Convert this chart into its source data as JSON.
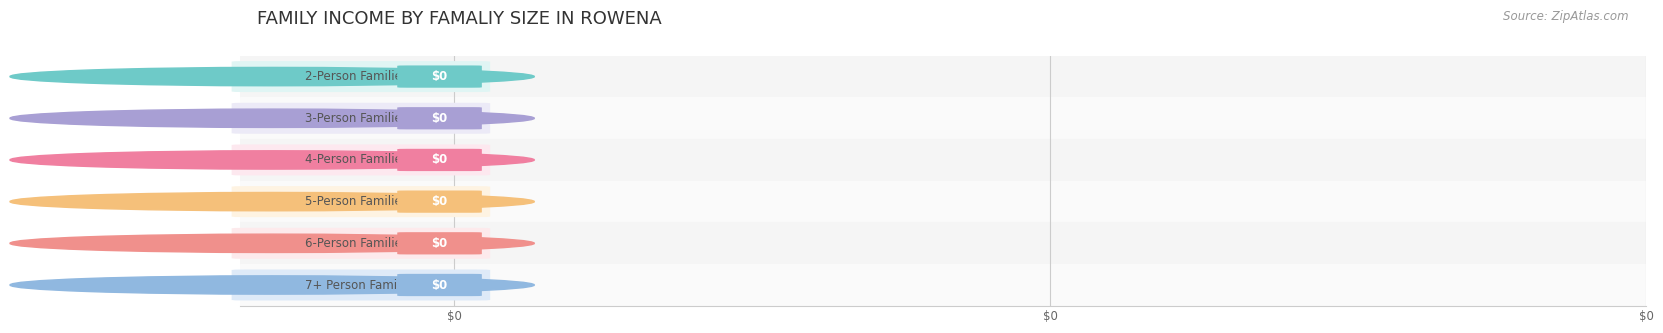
{
  "title": "FAMILY INCOME BY FAMALIY SIZE IN ROWENA",
  "source": "Source: ZipAtlas.com",
  "categories": [
    "2-Person Families",
    "3-Person Families",
    "4-Person Families",
    "5-Person Families",
    "6-Person Families",
    "7+ Person Families"
  ],
  "values": [
    0,
    0,
    0,
    0,
    0,
    0
  ],
  "bar_colors": [
    "#6ecac8",
    "#a89fd4",
    "#f07fa0",
    "#f5c07a",
    "#f0908c",
    "#90b8e0"
  ],
  "bar_bg_colors": [
    "#e0f5f4",
    "#eceaf7",
    "#fde8ef",
    "#fef3e2",
    "#fdeaec",
    "#deeaf8"
  ],
  "row_bg_colors": [
    "#f5f5f5",
    "#fafafa",
    "#f5f5f5",
    "#fafafa",
    "#f5f5f5",
    "#fafafa"
  ],
  "bg_color": "#ffffff",
  "xlim": [
    0,
    1
  ],
  "title_fontsize": 13,
  "label_fontsize": 8.5,
  "tick_fontsize": 8.5,
  "source_fontsize": 8.5
}
